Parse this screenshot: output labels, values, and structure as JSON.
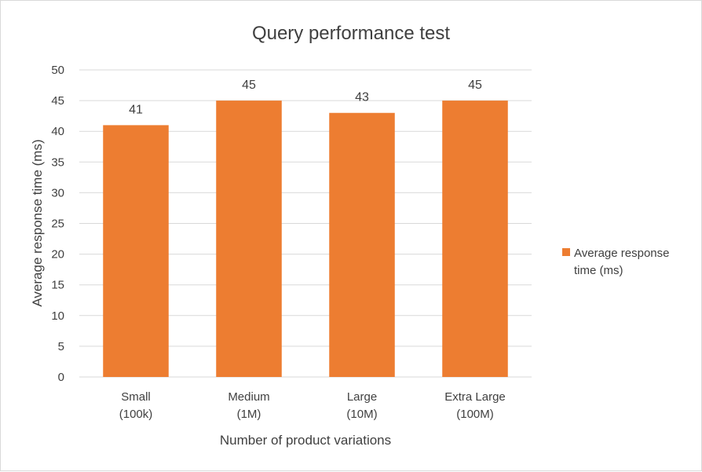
{
  "chart_data": {
    "type": "bar",
    "title": "Query performance test",
    "xlabel": "Number of product variations",
    "ylabel": "Average response time (ms)",
    "categories": [
      [
        "Small",
        "(100k)"
      ],
      [
        "Medium",
        "(1M)"
      ],
      [
        "Large",
        "(10M)"
      ],
      [
        "Extra Large",
        "(100M)"
      ]
    ],
    "series": [
      {
        "name": "Average response time (ms)",
        "legend_lines": [
          "Average response",
          "time (ms)"
        ],
        "values": [
          41,
          45,
          43,
          45
        ],
        "color": "#ED7D31"
      }
    ],
    "ylim": [
      0,
      50
    ],
    "yticks": [
      0,
      5,
      10,
      15,
      20,
      25,
      30,
      35,
      40,
      45,
      50
    ],
    "grid": true,
    "data_labels": true,
    "legend_position": "right",
    "gridline_color": "#D9D9D9"
  }
}
